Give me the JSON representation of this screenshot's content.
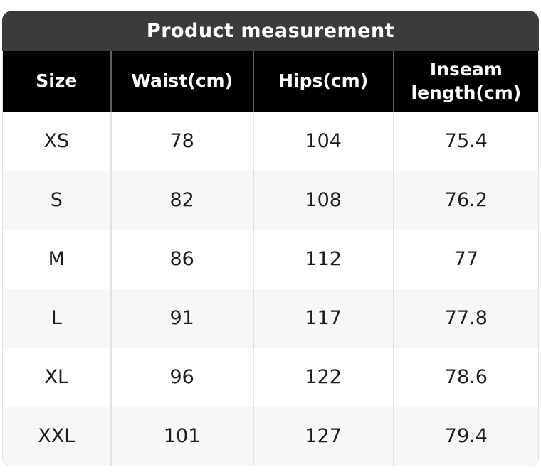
{
  "table": {
    "title": "Product measurement",
    "columns": [
      "Size",
      "Waist(cm)",
      "Hips(cm)",
      "Inseam length(cm)"
    ],
    "rows": [
      [
        "XS",
        "78",
        "104",
        "75.4"
      ],
      [
        "S",
        "82",
        "108",
        "76.2"
      ],
      [
        "M",
        "86",
        "112",
        "77"
      ],
      [
        "L",
        "91",
        "117",
        "77.8"
      ],
      [
        "XL",
        "96",
        "122",
        "78.6"
      ],
      [
        "XXL",
        "101",
        "127",
        "79.4"
      ]
    ],
    "colors": {
      "title_bar_bg": "#3b3b3b",
      "title_text": "#ffffff",
      "header_bg": "#000000",
      "header_text": "#ffffff",
      "body_text": "#1c1c1c",
      "row_alt_bg": "#f7f7f7",
      "divider_header": "#606060",
      "divider_body": "#e2e2e2",
      "outer_border": "#e0e0e0"
    }
  }
}
